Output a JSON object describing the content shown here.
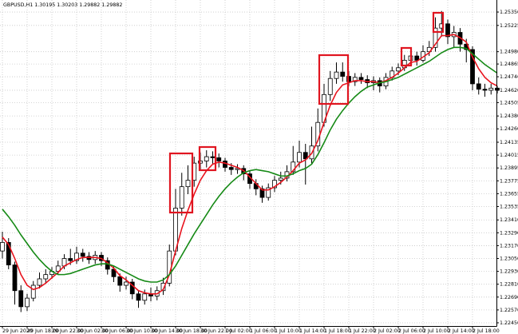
{
  "chart_data": {
    "type": "candlestick",
    "title": "GBPUSD,H1  1.30195 1.30203 1.29882 1.29882",
    "categories": [
      "29 Jun 2020",
      null,
      null,
      null,
      "29 Jun 18:00",
      null,
      null,
      null,
      "29 Jun 22:00",
      null,
      null,
      null,
      "30 Jun 02:00",
      null,
      null,
      null,
      "30 Jun 06:00",
      null,
      null,
      null,
      "30 Jun 10:00",
      null,
      null,
      null,
      "30 Jun 14:00",
      null,
      null,
      null,
      "30 Jun 18:00",
      null,
      null,
      null,
      "30 Jun 22:00",
      null,
      null,
      null,
      "1 Jul 02:00",
      null,
      null,
      null,
      "1 Jul 06:00",
      null,
      null,
      null,
      "1 Jul 10:00",
      null,
      null,
      null,
      "1 Jul 14:00",
      null,
      null,
      null,
      "1 Jul 18:00",
      null,
      null,
      null,
      "1 Jul 22:00",
      null,
      null,
      null,
      "2 Jul 02:00",
      null,
      null,
      null,
      "2 Jul 06:00",
      null,
      null,
      null,
      "2 Jul 10:00",
      null,
      null,
      null,
      "2 Jul 14:00",
      null,
      null,
      null,
      "2 Jul 18:00",
      null,
      null,
      null,
      null
    ],
    "open": [
      1.2312,
      1.232,
      1.2299,
      1.2275,
      1.226,
      1.2268,
      1.228,
      1.2286,
      1.229,
      1.2293,
      1.2298,
      1.2305,
      1.2303,
      1.231,
      1.2307,
      1.2304,
      1.2308,
      1.2303,
      1.2295,
      1.2288,
      1.228,
      1.2283,
      1.2272,
      1.2266,
      1.2272,
      1.227,
      1.2275,
      1.2282,
      1.2312,
      1.2352,
      1.2372,
      1.2378,
      1.2394,
      1.2396,
      1.24,
      1.2399,
      1.2396,
      1.239,
      1.2388,
      1.2389,
      1.2384,
      1.2375,
      1.237,
      1.2362,
      1.2371,
      1.2378,
      1.238,
      1.2386,
      1.2395,
      1.2404,
      1.2398,
      1.241,
      1.2432,
      1.2458,
      1.2473,
      1.2479,
      1.2475,
      1.247,
      1.2474,
      1.2472,
      1.2469,
      1.2471,
      1.2466,
      1.2474,
      1.248,
      1.2483,
      1.249,
      1.2494,
      1.249,
      1.2498,
      1.2502,
      1.252,
      1.2524,
      1.2512,
      1.2516,
      1.2505,
      1.25,
      1.2468,
      1.2463,
      1.2462,
      1.2464
    ],
    "high": [
      1.233,
      1.2324,
      1.2302,
      1.228,
      1.2272,
      1.2284,
      1.2292,
      1.2295,
      1.2297,
      1.2303,
      1.2309,
      1.2314,
      1.2316,
      1.2314,
      1.2311,
      1.2312,
      1.2311,
      1.2306,
      1.2298,
      1.2291,
      1.2288,
      1.2286,
      1.2275,
      1.2276,
      1.2278,
      1.2279,
      1.2287,
      1.2318,
      1.237,
      1.2385,
      1.2392,
      1.24,
      1.2404,
      1.2406,
      1.2405,
      1.2403,
      1.2399,
      1.2394,
      1.2393,
      1.2392,
      1.2387,
      1.2379,
      1.2373,
      1.2375,
      1.2382,
      1.2386,
      1.2392,
      1.241,
      1.2415,
      1.2412,
      1.2428,
      1.2445,
      1.2468,
      1.248,
      1.2488,
      1.2488,
      1.248,
      1.2478,
      1.2478,
      1.2476,
      1.2475,
      1.2474,
      1.2478,
      1.2484,
      1.2487,
      1.2495,
      1.25,
      1.2498,
      1.2504,
      1.2508,
      1.253,
      1.2536,
      1.2528,
      1.2522,
      1.252,
      1.251,
      1.2503,
      1.2474,
      1.2468,
      1.2468,
      1.2466
    ],
    "low": [
      1.2305,
      1.2295,
      1.2262,
      1.2255,
      1.2256,
      1.2265,
      1.2277,
      1.2282,
      1.2286,
      1.229,
      1.2295,
      1.2299,
      1.23,
      1.2302,
      1.23,
      1.23,
      1.2298,
      1.229,
      1.2283,
      1.2274,
      1.2276,
      1.2267,
      1.2259,
      1.2262,
      1.2265,
      1.2266,
      1.2271,
      1.2279,
      1.2308,
      1.2345,
      1.2365,
      1.2372,
      1.2388,
      1.239,
      1.2393,
      1.239,
      1.2386,
      1.2383,
      1.2384,
      1.2378,
      1.237,
      1.2364,
      1.2357,
      1.2359,
      1.2367,
      1.2374,
      1.2377,
      1.2383,
      1.239,
      1.2374,
      1.2393,
      1.2405,
      1.2428,
      1.2452,
      1.2468,
      1.247,
      1.2466,
      1.2466,
      1.2468,
      1.2464,
      1.2462,
      1.246,
      1.2463,
      1.2471,
      1.2476,
      1.248,
      1.2486,
      1.2485,
      1.2488,
      1.2494,
      1.2498,
      1.2512,
      1.2505,
      1.2502,
      1.2498,
      1.2488,
      1.2462,
      1.2458,
      1.2456,
      1.2458,
      1.2459
    ],
    "close": [
      1.232,
      1.2299,
      1.2275,
      1.226,
      1.2268,
      1.228,
      1.2286,
      1.229,
      1.2293,
      1.2298,
      1.2305,
      1.2303,
      1.231,
      1.2307,
      1.2304,
      1.2308,
      1.2303,
      1.2295,
      1.2288,
      1.228,
      1.2283,
      1.2272,
      1.2266,
      1.2272,
      1.227,
      1.2275,
      1.2282,
      1.2312,
      1.2352,
      1.2372,
      1.2378,
      1.2394,
      1.2396,
      1.24,
      1.2399,
      1.2396,
      1.239,
      1.2388,
      1.2389,
      1.2384,
      1.2375,
      1.237,
      1.2362,
      1.2371,
      1.2378,
      1.238,
      1.2386,
      1.2395,
      1.2404,
      1.2398,
      1.241,
      1.2432,
      1.2458,
      1.2473,
      1.2479,
      1.2475,
      1.247,
      1.2474,
      1.2472,
      1.2469,
      1.2471,
      1.2466,
      1.2474,
      1.248,
      1.2483,
      1.249,
      1.2494,
      1.249,
      1.2498,
      1.2502,
      1.252,
      1.2524,
      1.2512,
      1.2516,
      1.2505,
      1.25,
      1.2468,
      1.2463,
      1.2462,
      1.2464,
      1.2462
    ],
    "bull_color": "#ffffff",
    "bear_color": "#000000",
    "series": [
      {
        "color": "#e8141e",
        "values": [
          1.2325,
          1.2318,
          1.2305,
          1.229,
          1.228,
          1.2276,
          1.2278,
          1.2282,
          1.2287,
          1.2292,
          1.2298,
          1.2301,
          1.2304,
          1.2306,
          1.2306,
          1.2306,
          1.2305,
          1.2301,
          1.2296,
          1.2289,
          1.2285,
          1.228,
          1.2275,
          1.2273,
          1.2272,
          1.2272,
          1.2276,
          1.229,
          1.2312,
          1.2333,
          1.235,
          1.2365,
          1.2378,
          1.2387,
          1.2393,
          1.2395,
          1.2394,
          1.2392,
          1.239,
          1.2387,
          1.2381,
          1.2375,
          1.2369,
          1.2369,
          1.2372,
          1.2376,
          1.2381,
          1.2387,
          1.2394,
          1.2397,
          1.2403,
          1.2415,
          1.2432,
          1.2448,
          1.246,
          1.2467,
          1.2469,
          1.2471,
          1.2471,
          1.247,
          1.247,
          1.2469,
          1.2471,
          1.2474,
          1.2478,
          1.2483,
          1.2488,
          1.2489,
          1.2493,
          1.2497,
          1.2505,
          1.2513,
          1.2513,
          1.2514,
          1.2511,
          1.2507,
          1.2493,
          1.2482,
          1.2474,
          1.2469,
          1.2466
        ]
      },
      {
        "color": "#168a16",
        "values": [
          1.2351,
          1.2344,
          1.2336,
          1.2327,
          1.2319,
          1.2311,
          1.2304,
          1.2298,
          1.2293,
          1.229,
          1.229,
          1.2291,
          1.2293,
          1.2295,
          1.2297,
          1.2299,
          1.23,
          1.23,
          1.2298,
          1.2295,
          1.2292,
          1.2289,
          1.2286,
          1.2284,
          1.2283,
          1.2283,
          1.2285,
          1.229,
          1.2298,
          1.2308,
          1.2318,
          1.2328,
          1.2337,
          1.2346,
          1.2355,
          1.2363,
          1.237,
          1.2376,
          1.2381,
          1.2385,
          1.2387,
          1.2388,
          1.2387,
          1.2386,
          1.2384,
          1.2382,
          1.2382,
          1.2384,
          1.2387,
          1.2389,
          1.2393,
          1.2402,
          1.2413,
          1.2425,
          1.2435,
          1.2443,
          1.245,
          1.2456,
          1.2461,
          1.2465,
          1.2467,
          1.2469,
          1.247,
          1.2472,
          1.2474,
          1.2477,
          1.248,
          1.2483,
          1.2486,
          1.2489,
          1.2493,
          1.2497,
          1.25,
          1.2502,
          1.2502,
          1.2501,
          1.2496,
          1.2491,
          1.2486,
          1.2482,
          1.2478
        ]
      }
    ],
    "ylim": [
      1.2242,
      1.25425
    ],
    "yticks": [
      {
        "value": 1.2535,
        "label": "1.25350"
      },
      {
        "value": 1.25225,
        "label": "1.25225"
      },
      {
        "value": 1.2498,
        "label": "1.24980"
      },
      {
        "value": 1.24865,
        "label": "1.24865"
      },
      {
        "value": 1.24746,
        "label": "1.24746"
      },
      {
        "value": 1.2462,
        "label": "1.24620"
      },
      {
        "value": 1.24505,
        "label": "1.24505"
      },
      {
        "value": 1.2438,
        "label": "1.24380"
      },
      {
        "value": 1.2426,
        "label": "1.24260"
      },
      {
        "value": 1.24135,
        "label": "1.24135"
      },
      {
        "value": 1.24015,
        "label": "1.24015"
      },
      {
        "value": 1.23895,
        "label": "1.23895"
      },
      {
        "value": 1.23775,
        "label": "1.23775"
      },
      {
        "value": 1.23655,
        "label": "1.23655"
      },
      {
        "value": 1.23535,
        "label": "1.23535"
      },
      {
        "value": 1.2341,
        "label": "1.23410"
      },
      {
        "value": 1.2329,
        "label": "1.23290"
      },
      {
        "value": 1.2317,
        "label": "1.23170"
      },
      {
        "value": 1.2305,
        "label": "1.23050"
      },
      {
        "value": 1.2293,
        "label": "1.22930"
      },
      {
        "value": 1.2281,
        "label": "1.22810"
      },
      {
        "value": 1.2269,
        "label": "1.22690"
      },
      {
        "value": 1.2257,
        "label": "1.22570"
      },
      {
        "value": 1.2245,
        "label": "1.22450"
      }
    ],
    "grid": true
  }
}
